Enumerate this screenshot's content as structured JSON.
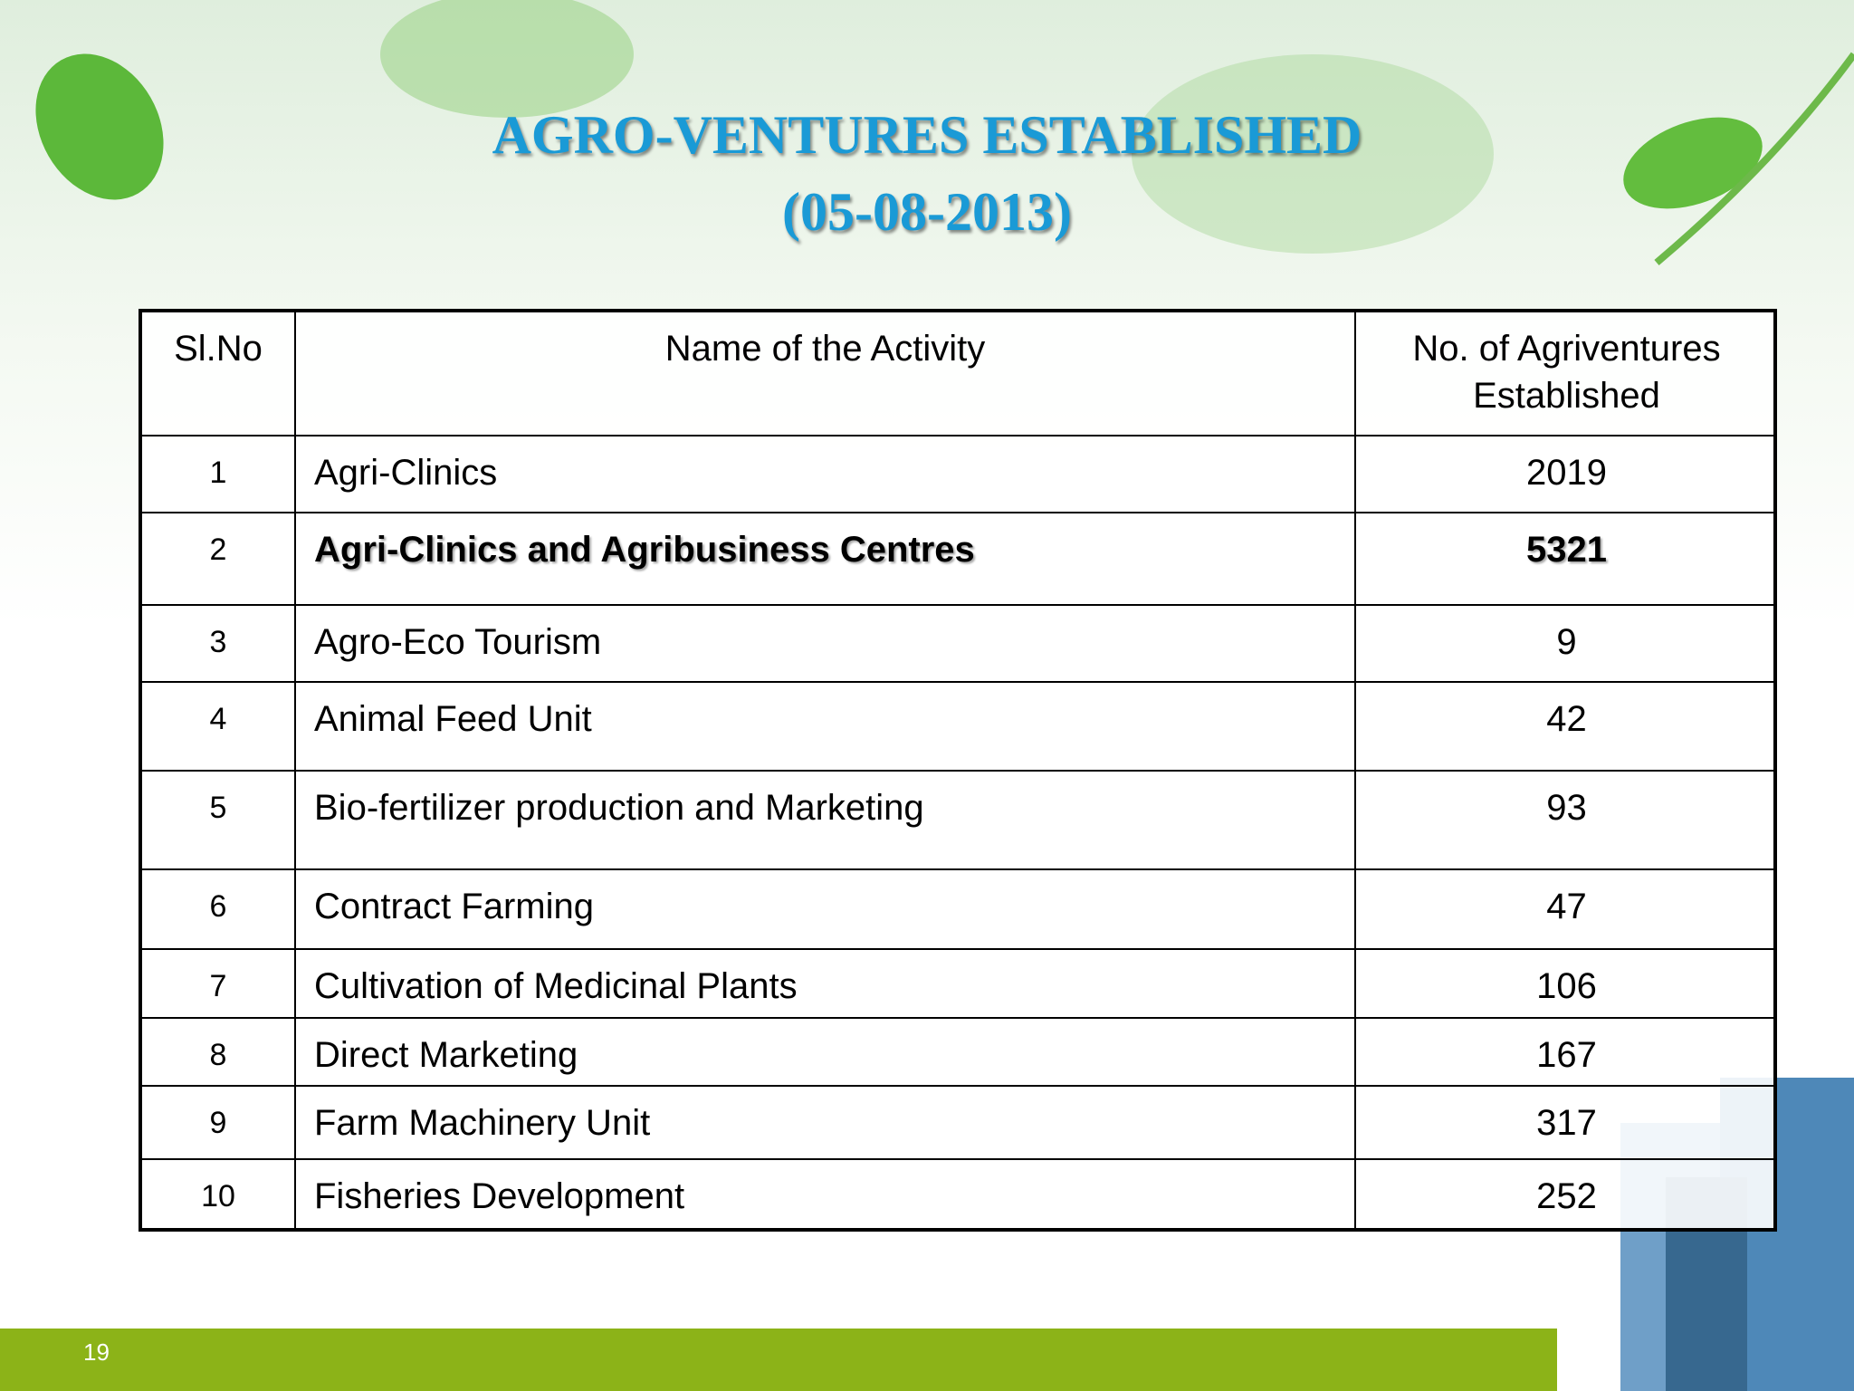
{
  "header": {
    "title": "AGRO-VENTURES ESTABLISHED",
    "date": "(05-08-2013)"
  },
  "table": {
    "columns": [
      "Sl.No",
      "Name of the Activity",
      "No. of Agriventures Established"
    ],
    "rows": [
      [
        "1",
        "Agri-Clinics",
        "2019"
      ],
      [
        "2",
        "Agri-Clinics and Agribusiness Centres",
        "5321"
      ],
      [
        "3",
        "Agro-Eco Tourism",
        "9"
      ],
      [
        "4",
        "Animal Feed Unit",
        "42"
      ],
      [
        "5",
        "Bio-fertilizer production and Marketing",
        "93"
      ],
      [
        "6",
        "Contract Farming",
        "47"
      ],
      [
        "7",
        "Cultivation of Medicinal Plants",
        "106"
      ],
      [
        "8",
        "Direct Marketing",
        "167"
      ],
      [
        "9",
        "Farm Machinery Unit",
        "317"
      ],
      [
        "10",
        "Fisheries Development",
        "252"
      ]
    ]
  },
  "footer": {
    "page": "19"
  }
}
